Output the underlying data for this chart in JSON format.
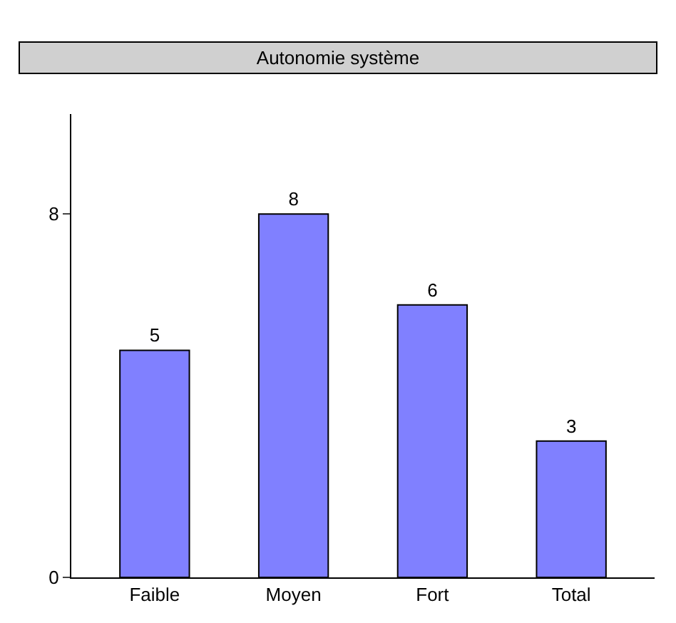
{
  "chart_data": {
    "type": "bar",
    "title": "Autonomie système",
    "categories": [
      "Faible",
      "Moyen",
      "Fort",
      "Total"
    ],
    "values": [
      5,
      8,
      6,
      3
    ],
    "color": "#8080ff",
    "ylim": [
      0,
      10.2
    ],
    "yticks": [
      0,
      8
    ],
    "data_labels": true
  }
}
